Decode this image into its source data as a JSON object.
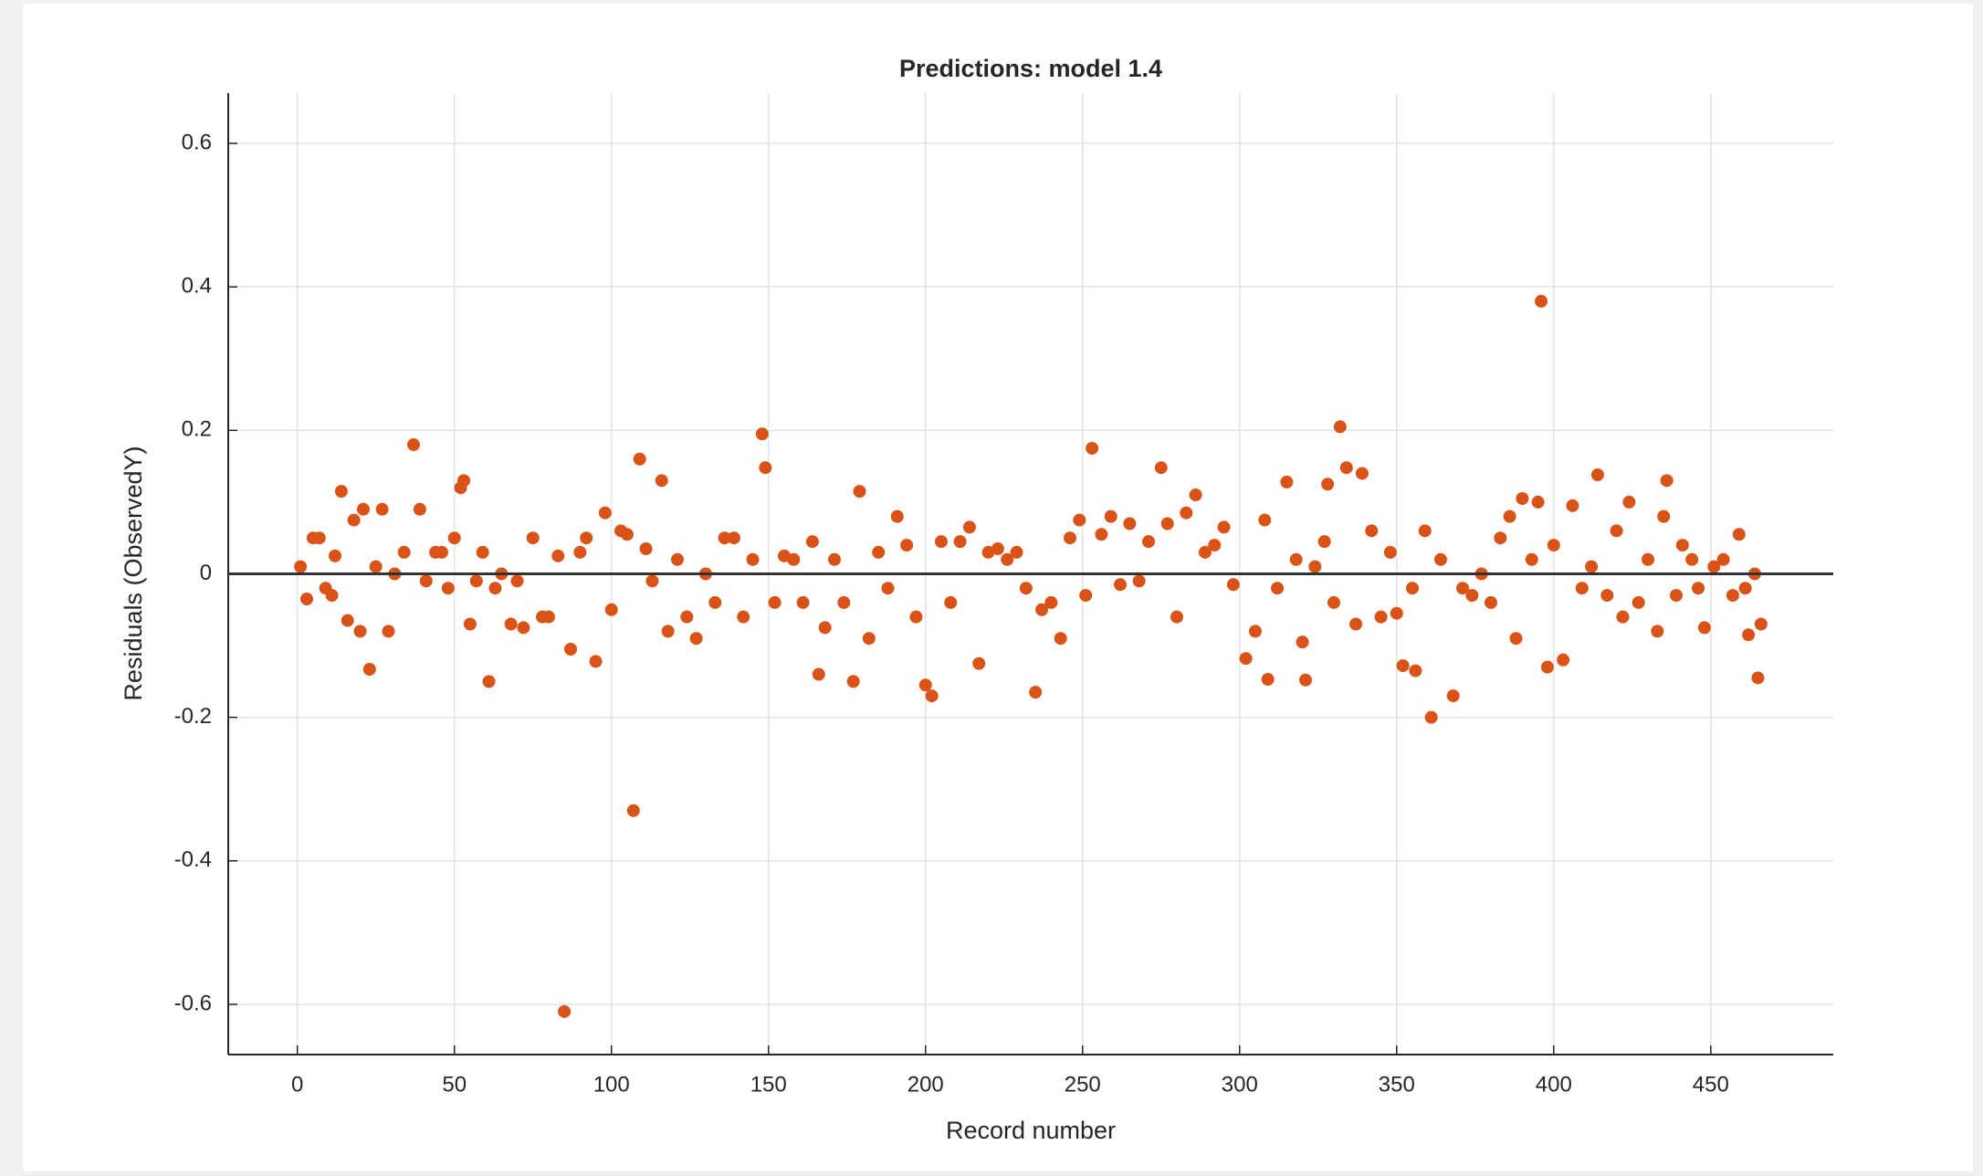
{
  "chart_data": {
    "type": "scatter",
    "title": "Predictions: model 1.4",
    "x_label": "Record number",
    "y_label": "Residuals (ObservedY)",
    "series": [
      {
        "color": "#d95319",
        "x": [
          1,
          3,
          5,
          7,
          9,
          11,
          12,
          14,
          16,
          18,
          20,
          21,
          23,
          25,
          27,
          29,
          31,
          34,
          37,
          39,
          41,
          44,
          46,
          48,
          50,
          52,
          53,
          55,
          57,
          59,
          61,
          63,
          65,
          68,
          70,
          72,
          75,
          78,
          80,
          83,
          85,
          87,
          90,
          92,
          95,
          98,
          100,
          103,
          105,
          107,
          109,
          111,
          113,
          116,
          118,
          121,
          124,
          127,
          130,
          133,
          136,
          139,
          142,
          145,
          148,
          149,
          152,
          155,
          158,
          161,
          164,
          166,
          168,
          171,
          174,
          177,
          179,
          182,
          185,
          188,
          191,
          194,
          197,
          200,
          202,
          205,
          208,
          211,
          214,
          217,
          220,
          223,
          226,
          229,
          232,
          235,
          237,
          240,
          243,
          246,
          249,
          251,
          253,
          256,
          259,
          262,
          265,
          268,
          271,
          275,
          277,
          280,
          283,
          286,
          289,
          292,
          295,
          298,
          302,
          305,
          308,
          309,
          312,
          315,
          318,
          320,
          321,
          324,
          327,
          328,
          330,
          332,
          334,
          337,
          339,
          342,
          345,
          348,
          350,
          352,
          355,
          356,
          359,
          361,
          364,
          368,
          371,
          374,
          377,
          380,
          383,
          386,
          388,
          390,
          393,
          395,
          396,
          398,
          400,
          403,
          406,
          409,
          412,
          414,
          417,
          420,
          422,
          424,
          427,
          430,
          433,
          435,
          436,
          439,
          441,
          444,
          446,
          448,
          451,
          454,
          457,
          459,
          461,
          462,
          464,
          465,
          466
        ],
        "values": [
          0.01,
          -0.035,
          0.05,
          0.05,
          -0.02,
          -0.03,
          0.025,
          0.115,
          -0.065,
          0.075,
          -0.08,
          0.09,
          -0.133,
          0.01,
          0.09,
          -0.08,
          0.0,
          0.03,
          0.18,
          0.09,
          -0.01,
          0.03,
          0.03,
          -0.02,
          0.05,
          0.12,
          0.13,
          -0.07,
          -0.01,
          0.03,
          -0.15,
          -0.02,
          0.0,
          -0.07,
          -0.01,
          -0.075,
          0.05,
          -0.06,
          -0.06,
          0.025,
          -0.61,
          -0.105,
          0.03,
          0.05,
          -0.122,
          0.085,
          -0.05,
          0.06,
          0.055,
          -0.33,
          0.16,
          0.035,
          -0.01,
          0.13,
          -0.08,
          0.02,
          -0.06,
          -0.09,
          0.0,
          -0.04,
          0.05,
          0.05,
          -0.06,
          0.02,
          0.195,
          0.148,
          -0.04,
          0.025,
          0.02,
          -0.04,
          0.045,
          -0.14,
          -0.075,
          0.02,
          -0.04,
          -0.15,
          0.115,
          -0.09,
          0.03,
          -0.02,
          0.08,
          0.04,
          -0.06,
          -0.155,
          -0.17,
          0.045,
          -0.04,
          0.045,
          0.065,
          -0.125,
          0.03,
          0.035,
          0.02,
          0.03,
          -0.02,
          -0.165,
          -0.05,
          -0.04,
          -0.09,
          0.05,
          0.075,
          -0.03,
          0.175,
          0.055,
          0.08,
          -0.015,
          0.07,
          -0.01,
          0.045,
          0.148,
          0.07,
          -0.06,
          0.085,
          0.11,
          0.03,
          0.04,
          0.065,
          -0.015,
          -0.118,
          -0.08,
          0.075,
          -0.147,
          -0.02,
          0.128,
          0.02,
          -0.095,
          -0.148,
          0.01,
          0.045,
          0.125,
          -0.04,
          0.205,
          0.148,
          -0.07,
          0.14,
          0.06,
          -0.06,
          0.03,
          -0.055,
          -0.128,
          -0.02,
          -0.135,
          0.06,
          -0.2,
          0.02,
          -0.17,
          -0.02,
          -0.03,
          0.0,
          -0.04,
          0.05,
          0.08,
          -0.09,
          0.105,
          0.02,
          0.1,
          0.38,
          -0.13,
          0.04,
          -0.12,
          0.095,
          -0.02,
          0.01,
          0.138,
          -0.03,
          0.06,
          -0.06,
          0.1,
          -0.04,
          0.02,
          -0.08,
          0.08,
          0.13,
          -0.03,
          0.04,
          0.02,
          -0.02,
          -0.075,
          0.01,
          0.02,
          -0.03,
          0.055,
          -0.02,
          -0.085,
          0.0,
          -0.145,
          -0.07
        ]
      }
    ],
    "hline": 0,
    "xlim": [
      -22,
      489
    ],
    "xticks": [
      0,
      50,
      100,
      150,
      200,
      250,
      300,
      350,
      400,
      450
    ],
    "ylim": [
      -0.67,
      0.67
    ],
    "yticks": [
      -0.6,
      -0.4,
      -0.2,
      0,
      0.2,
      0.4,
      0.6
    ],
    "grid": true
  }
}
